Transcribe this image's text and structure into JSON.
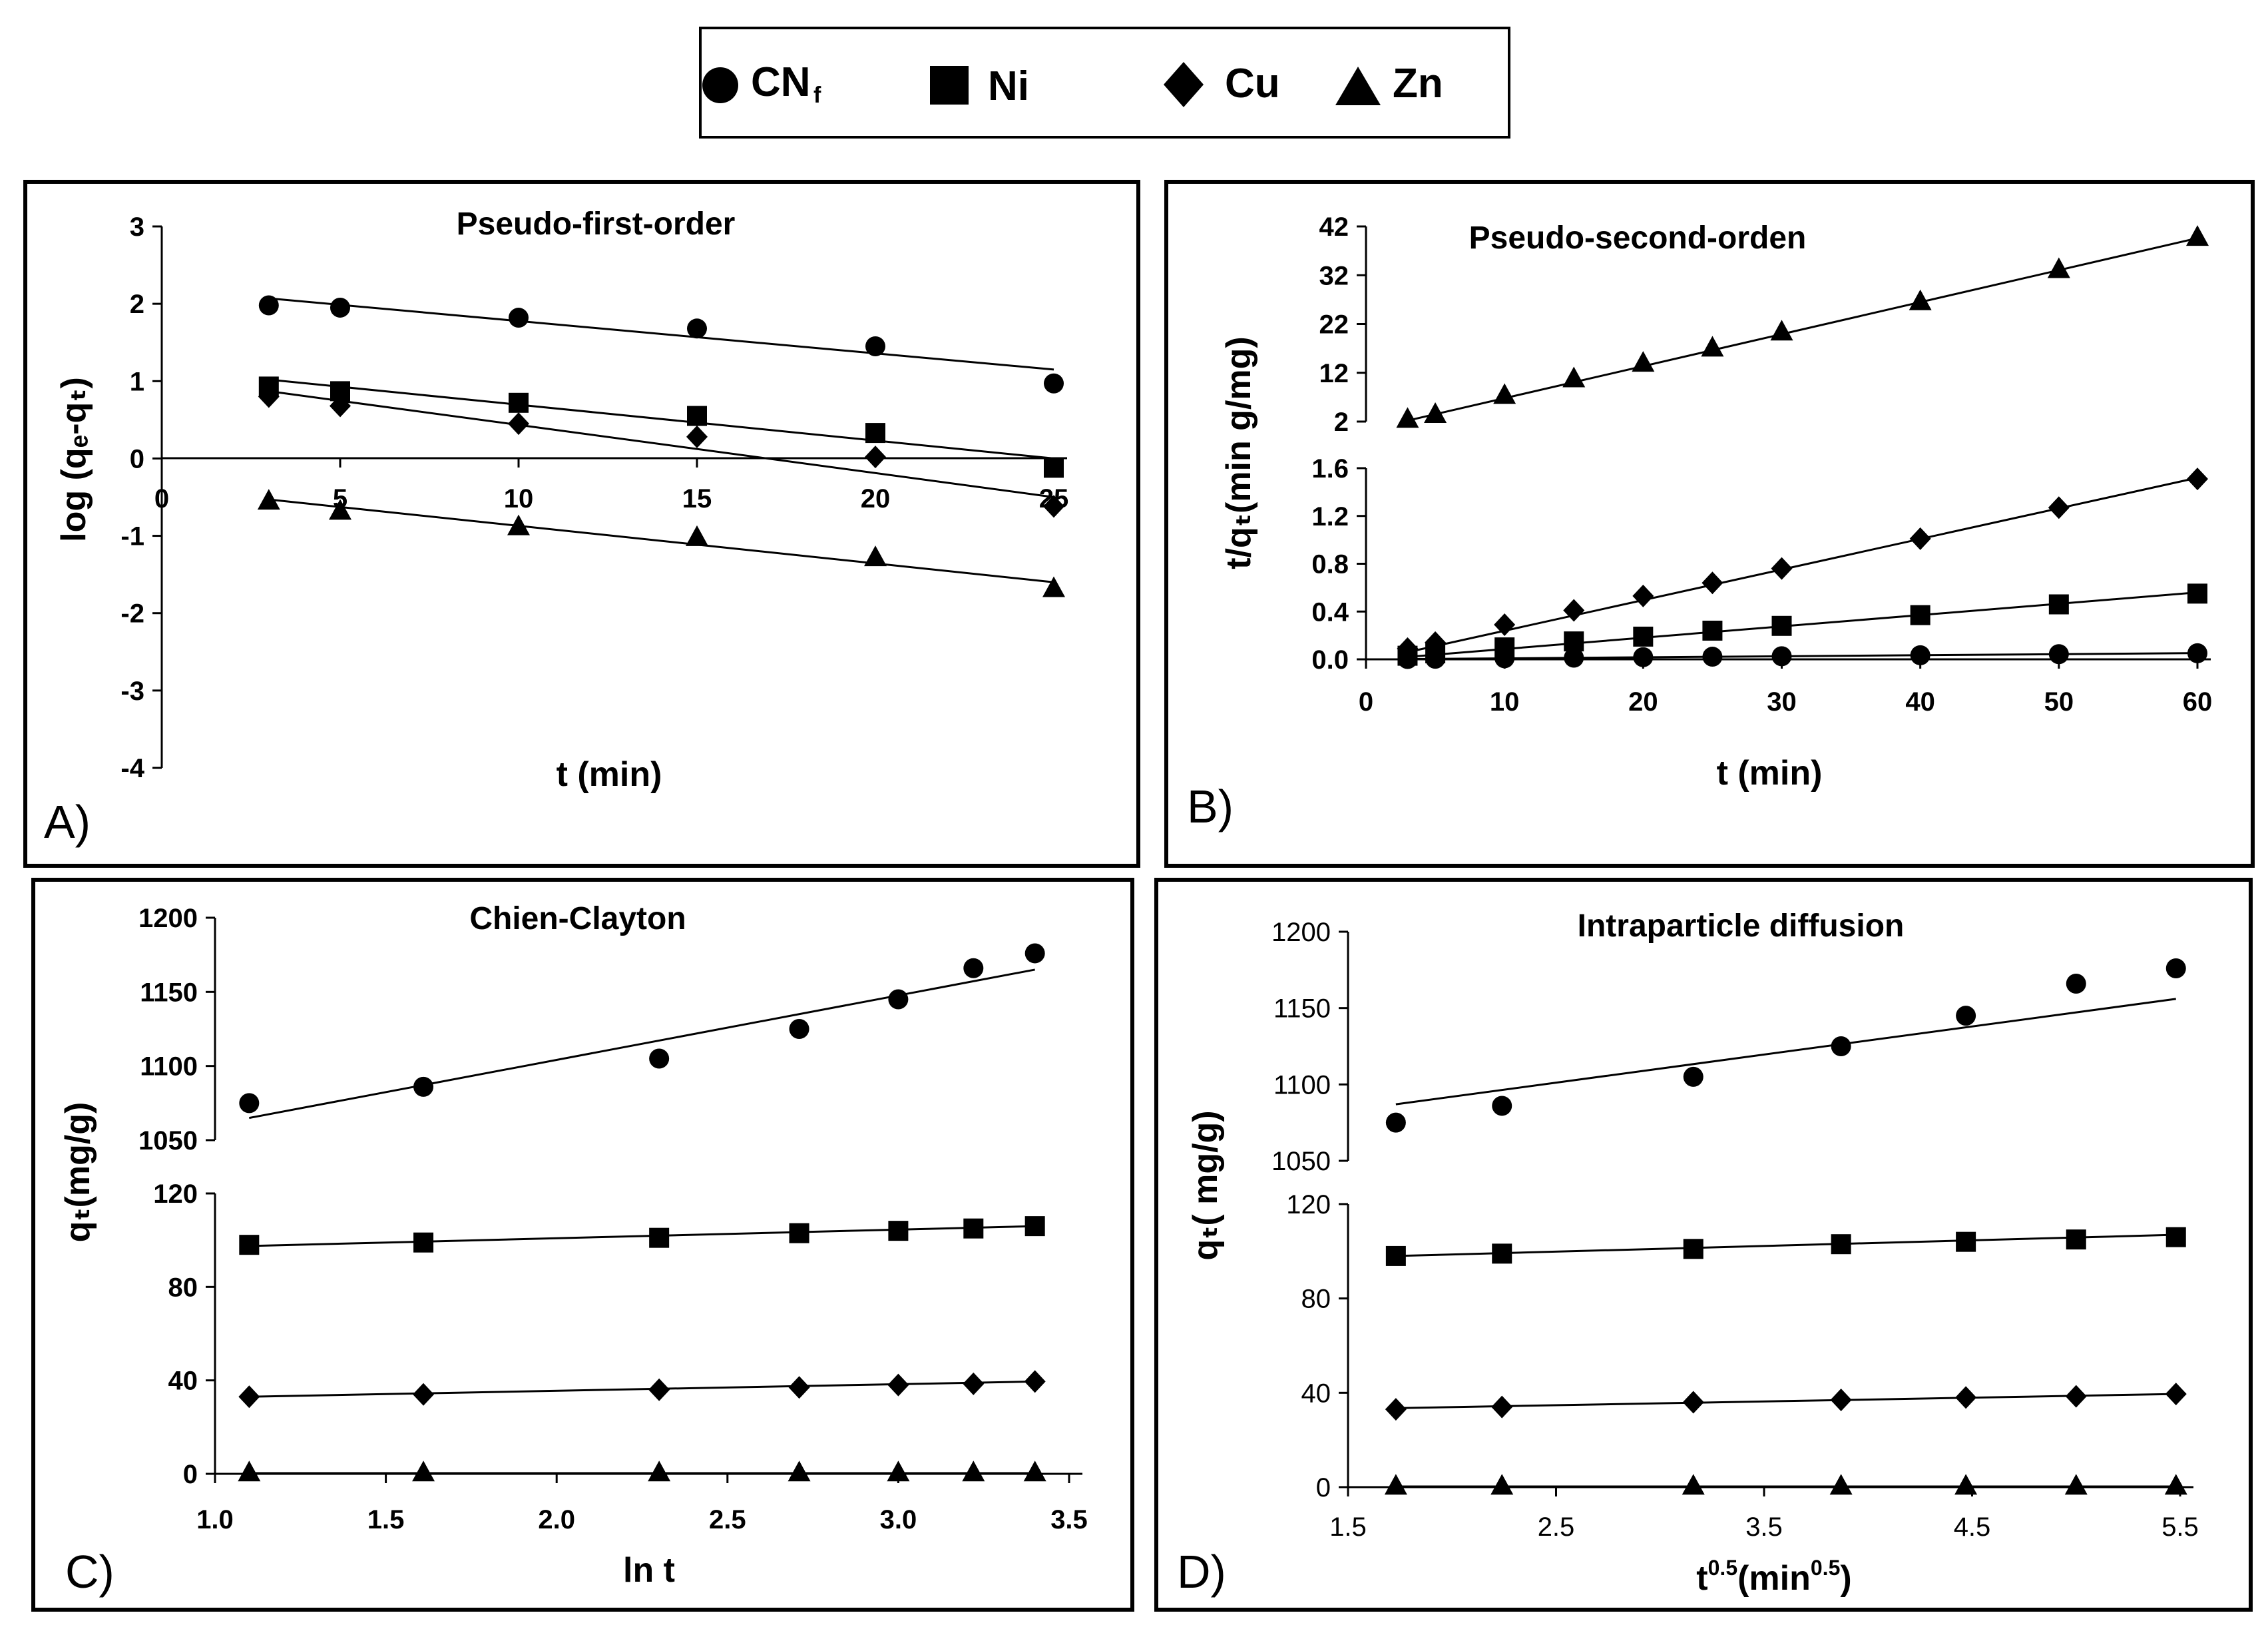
{
  "legend": [
    {
      "name": "CN_f",
      "label": "CN",
      "sub": "f",
      "marker": "circle"
    },
    {
      "name": "Ni",
      "label": "Ni",
      "marker": "square"
    },
    {
      "name": "Cu",
      "label": "Cu",
      "marker": "diamond"
    },
    {
      "name": "Zn",
      "label": "Zn",
      "marker": "triangle"
    }
  ],
  "colors": {
    "ink": "#000000",
    "background": "#ffffff"
  },
  "chart_data": [
    {
      "id": "A",
      "type": "scatter",
      "panel_letter": "A)",
      "title": "Pseudo-first-order",
      "xlabel": "t (min)",
      "ylabel": "log (qₑ-qₜ)",
      "xlim": [
        0,
        25
      ],
      "ylim": [
        -4,
        3
      ],
      "xticks": [
        "0",
        "5",
        "10",
        "15",
        "20",
        "25"
      ],
      "yticks": [
        "3",
        "2",
        "1",
        "0",
        "-1",
        "-2",
        "-3",
        "-4"
      ],
      "series": [
        {
          "name": "CN_f",
          "marker": "circle",
          "x": [
            3,
            5,
            10,
            15,
            20,
            25
          ],
          "y": [
            1.98,
            1.95,
            1.82,
            1.68,
            1.45,
            0.97
          ],
          "fit": [
            [
              3,
              2.07
            ],
            [
              25,
              1.15
            ]
          ]
        },
        {
          "name": "Ni",
          "marker": "square",
          "x": [
            3,
            5,
            10,
            15,
            20,
            25
          ],
          "y": [
            0.93,
            0.87,
            0.72,
            0.55,
            0.33,
            -0.12
          ],
          "fit": [
            [
              3,
              1.02
            ],
            [
              25,
              0.0
            ]
          ]
        },
        {
          "name": "Cu",
          "marker": "diamond",
          "x": [
            3,
            5,
            10,
            15,
            20,
            25
          ],
          "y": [
            0.8,
            0.68,
            0.45,
            0.28,
            0.02,
            -0.62
          ],
          "fit": [
            [
              3,
              0.87
            ],
            [
              25,
              -0.5
            ]
          ]
        },
        {
          "name": "Zn",
          "marker": "triangle",
          "x": [
            3,
            5,
            10,
            15,
            20,
            25
          ],
          "y": [
            -0.55,
            -0.68,
            -0.88,
            -1.02,
            -1.28,
            -1.68
          ],
          "fit": [
            [
              3,
              -0.53
            ],
            [
              25,
              -1.6
            ]
          ]
        }
      ]
    },
    {
      "id": "B",
      "type": "scatter",
      "panel_letter": "B)",
      "title": "Pseudo-second-orden",
      "xlabel": "t (min)",
      "ylabel": "t/qₜ(min g/mg)",
      "xlim": [
        0,
        60
      ],
      "xticks": [
        "0",
        "10",
        "20",
        "30",
        "40",
        "50",
        "60"
      ],
      "upper": {
        "ylim": [
          2,
          42
        ],
        "yticks": [
          "42",
          "32",
          "22",
          "12",
          "2"
        ],
        "series": [
          {
            "name": "Zn",
            "marker": "triangle",
            "x": [
              3,
              5,
              10,
              15,
              20,
              25,
              30,
              40,
              50,
              60
            ],
            "y": [
              2.5,
              3.5,
              7.4,
              10.8,
              14.0,
              17.1,
              20.4,
              26.6,
              33.2,
              39.8
            ],
            "fit": [
              [
                3,
                2.2
              ],
              [
                60,
                39.6
              ]
            ]
          }
        ]
      },
      "lower": {
        "ylim": [
          0,
          1.6
        ],
        "yticks": [
          "1.6",
          "1.2",
          "0.8",
          "0.4",
          "0.0"
        ],
        "series": [
          {
            "name": "Cu",
            "marker": "diamond",
            "x": [
              3,
              5,
              10,
              15,
              20,
              25,
              30,
              40,
              50,
              60
            ],
            "y": [
              0.09,
              0.14,
              0.29,
              0.41,
              0.53,
              0.64,
              0.76,
              1.01,
              1.27,
              1.51
            ],
            "fit": [
              [
                3,
                0.06
              ],
              [
                60,
                1.52
              ]
            ]
          },
          {
            "name": "Ni",
            "marker": "square",
            "x": [
              3,
              5,
              10,
              15,
              20,
              25,
              30,
              40,
              50,
              60
            ],
            "y": [
              0.03,
              0.05,
              0.1,
              0.15,
              0.19,
              0.24,
              0.28,
              0.37,
              0.46,
              0.55
            ],
            "fit": [
              [
                3,
                0.02
              ],
              [
                60,
                0.56
              ]
            ]
          },
          {
            "name": "CN_f",
            "marker": "circle",
            "x": [
              3,
              5,
              10,
              15,
              20,
              25,
              30,
              40,
              50,
              60
            ],
            "y": [
              0.003,
              0.005,
              0.009,
              0.014,
              0.018,
              0.022,
              0.026,
              0.034,
              0.043,
              0.051
            ],
            "fit": [
              [
                3,
                0.002
              ],
              [
                60,
                0.052
              ]
            ]
          },
          {
            "name": "Zn_base",
            "marker": "none",
            "x": [],
            "y": [],
            "fit": [
              [
                3,
                0.0
              ],
              [
                60,
                0.0
              ]
            ]
          }
        ]
      }
    },
    {
      "id": "C",
      "type": "scatter",
      "panel_letter": "C)",
      "title": "Chien-Clayton",
      "xlabel": "ln t",
      "ylabel": "qₜ(mg/g)",
      "xlim": [
        1.0,
        3.5
      ],
      "xticks": [
        "1.0",
        "1.5",
        "2.0",
        "2.5",
        "3.0",
        "3.5"
      ],
      "upper": {
        "ylim": [
          1050,
          1200
        ],
        "yticks": [
          "1200",
          "1150",
          "1100",
          "1050"
        ],
        "series": [
          {
            "name": "CN_f",
            "marker": "circle",
            "x": [
              1.1,
              1.61,
              2.3,
              2.71,
              3.0,
              3.22,
              3.4
            ],
            "y": [
              1075,
              1086,
              1105,
              1125,
              1145,
              1166,
              1176
            ],
            "fit": [
              [
                1.1,
                1065
              ],
              [
                3.4,
                1165
              ]
            ]
          }
        ]
      },
      "lower": {
        "ylim": [
          0,
          120
        ],
        "yticks": [
          "120",
          "80",
          "40",
          "0"
        ],
        "series": [
          {
            "name": "Ni",
            "marker": "square",
            "x": [
              1.1,
              1.61,
              2.3,
              2.71,
              3.0,
              3.22,
              3.4
            ],
            "y": [
              98,
              99,
              101,
              103,
              104,
              105,
              106
            ],
            "fit": [
              [
                1.1,
                97.5
              ],
              [
                3.4,
                106
              ]
            ]
          },
          {
            "name": "Cu",
            "marker": "diamond",
            "x": [
              1.1,
              1.61,
              2.3,
              2.71,
              3.0,
              3.22,
              3.4
            ],
            "y": [
              33,
              34,
              36,
              37,
              38,
              38.5,
              39.5
            ],
            "fit": [
              [
                1.1,
                33
              ],
              [
                3.4,
                39.5
              ]
            ]
          },
          {
            "name": "Zn",
            "marker": "triangle",
            "x": [
              1.1,
              1.61,
              2.3,
              2.71,
              3.0,
              3.22,
              3.4
            ],
            "y": [
              0.5,
              0.5,
              0.5,
              0.5,
              0.5,
              0.5,
              0.5
            ],
            "fit": [
              [
                1.1,
                0.3
              ],
              [
                3.4,
                0.3
              ]
            ]
          }
        ]
      }
    },
    {
      "id": "D",
      "type": "scatter",
      "panel_letter": "D)",
      "title": "Intraparticle diffusion",
      "xlabel": "t",
      "xlabel_sup": "0.5",
      "xlabel_unit": "(min",
      "xlabel_unit_sup": "0.5",
      "xlabel_close": ")",
      "ylabel": "qₜ( mg/g)",
      "xlim": [
        1.5,
        5.5
      ],
      "xticks": [
        "1.5",
        "2.5",
        "3.5",
        "4.5",
        "5.5"
      ],
      "upper": {
        "ylim": [
          1050,
          1200
        ],
        "yticks": [
          "1200",
          "1150",
          "1100",
          "1050"
        ],
        "series": [
          {
            "name": "CN_f",
            "marker": "circle",
            "x": [
              1.73,
              2.24,
              3.16,
              3.87,
              4.47,
              5.0,
              5.48
            ],
            "y": [
              1075,
              1086,
              1105,
              1125,
              1145,
              1166,
              1176
            ],
            "fit": [
              [
                1.73,
                1087
              ],
              [
                5.48,
                1156
              ]
            ]
          }
        ]
      },
      "lower": {
        "ylim": [
          0,
          120
        ],
        "yticks": [
          "120",
          "80",
          "40",
          "0"
        ],
        "series": [
          {
            "name": "Ni",
            "marker": "square",
            "x": [
              1.73,
              2.24,
              3.16,
              3.87,
              4.47,
              5.0,
              5.48
            ],
            "y": [
              98,
              99,
              101,
              103,
              104,
              105,
              106
            ],
            "fit": [
              [
                1.73,
                98
              ],
              [
                5.48,
                107
              ]
            ]
          },
          {
            "name": "Cu",
            "marker": "diamond",
            "x": [
              1.73,
              2.24,
              3.16,
              3.87,
              4.47,
              5.0,
              5.48
            ],
            "y": [
              33,
              34,
              36,
              37,
              38,
              38.5,
              39.5
            ],
            "fit": [
              [
                1.73,
                33.5
              ],
              [
                5.48,
                39.5
              ]
            ]
          },
          {
            "name": "Zn",
            "marker": "triangle",
            "x": [
              1.73,
              2.24,
              3.16,
              3.87,
              4.47,
              5.0,
              5.48
            ],
            "y": [
              0.5,
              0.5,
              0.5,
              0.5,
              0.5,
              0.5,
              0.5
            ],
            "fit": [
              [
                1.73,
                0.3
              ],
              [
                5.48,
                0.3
              ]
            ]
          }
        ]
      }
    }
  ]
}
